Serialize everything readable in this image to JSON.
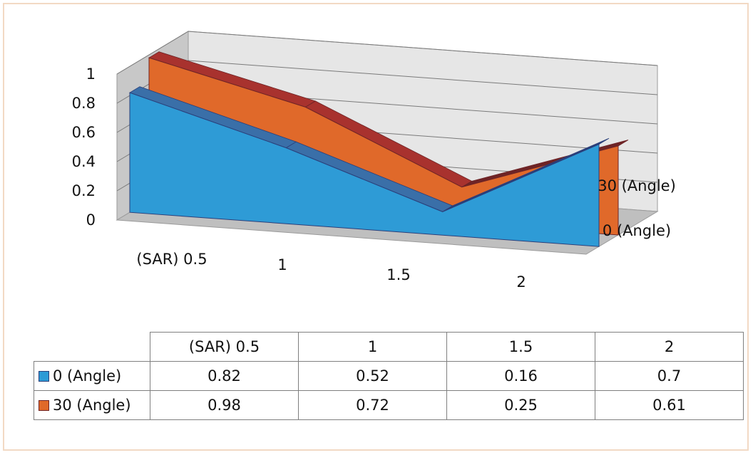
{
  "chart_data": {
    "type": "area",
    "three_d": true,
    "categories": [
      "(SAR) 0.5",
      "1",
      "1.5",
      "2"
    ],
    "series": [
      {
        "name": "0 (Angle)",
        "values": [
          0.82,
          0.52,
          0.16,
          0.7
        ],
        "color": "#2e9bd6",
        "top_color": "#3a6fa8",
        "edge_color": "#2a3f7a"
      },
      {
        "name": "30 (Angle)",
        "values": [
          0.98,
          0.72,
          0.25,
          0.61
        ],
        "color": "#e0692a",
        "top_color": "#a8322e",
        "edge_color": "#6e2426"
      }
    ],
    "yticks": [
      "0",
      "0.2",
      "0.4",
      "0.6",
      "0.8",
      "1"
    ],
    "ylim": [
      0,
      1
    ],
    "grid": true,
    "data_table": true,
    "wall_color": "#e6e6e6",
    "floor_color": "#bfbfbf"
  }
}
